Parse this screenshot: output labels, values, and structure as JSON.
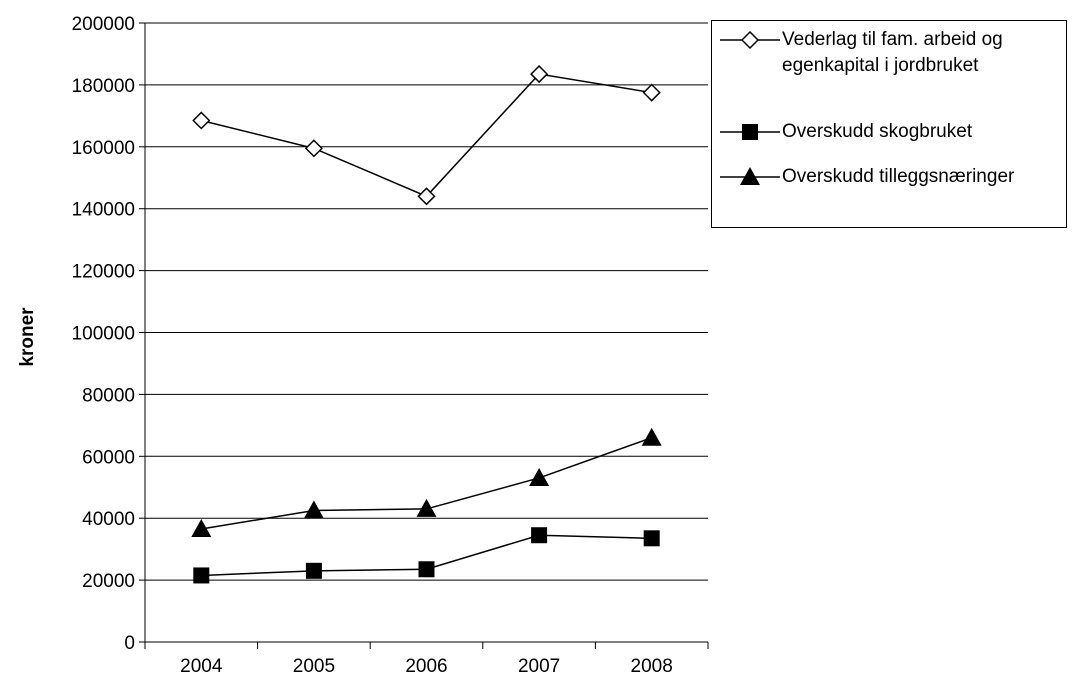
{
  "chart_data": {
    "type": "line",
    "categories": [
      "2004",
      "2005",
      "2006",
      "2007",
      "2008"
    ],
    "series": [
      {
        "name": "Vederlag til fam. arbeid og\negenkapital i jordbruket",
        "marker": "diamond-open",
        "values": [
          168500,
          159500,
          144000,
          183500,
          177500
        ]
      },
      {
        "name": "Overskudd skogbruket",
        "marker": "square-filled",
        "values": [
          21500,
          23000,
          23500,
          34500,
          33500
        ]
      },
      {
        "name": "Overskudd tilleggsnæringer",
        "marker": "triangle-filled",
        "values": [
          36500,
          42500,
          43000,
          53000,
          66000
        ]
      }
    ],
    "ylabel": "kroner",
    "xlabel": "",
    "ylim": [
      0,
      200000
    ],
    "yticks": [
      "0",
      "20000",
      "40000",
      "60000",
      "80000",
      "100000",
      "120000",
      "140000",
      "160000",
      "180000",
      "200000"
    ],
    "grid": true,
    "legend_position": "top-right",
    "colors": {
      "line": "#000000",
      "grid": "#000000",
      "background": "#ffffff"
    }
  }
}
